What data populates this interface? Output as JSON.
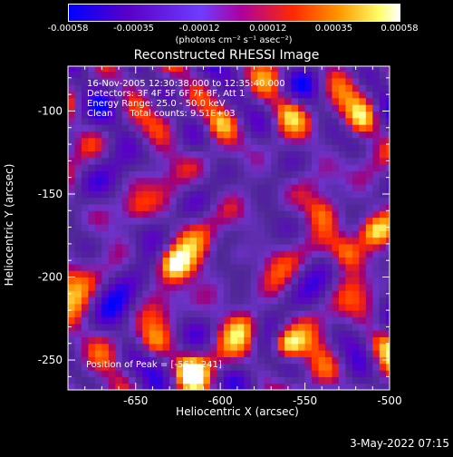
{
  "chart_data": {
    "type": "heatmap",
    "title": "Reconstructed RHESSI Image",
    "xlabel": "Heliocentric X (arcsec)",
    "ylabel": "Heliocentric Y (arcsec)",
    "xlim": [
      -690,
      -500
    ],
    "ylim": [
      -268,
      -73
    ],
    "x_ticks": [
      -650,
      -600,
      -550,
      -500
    ],
    "y_ticks": [
      -100,
      -150,
      -200,
      -250
    ],
    "colorbar": {
      "min": -0.00058,
      "max": 0.00058,
      "tick_labels": [
        "-0.00058",
        "-0.00035",
        "-0.00012",
        "0.00012",
        "0.00035",
        "0.00058"
      ],
      "tick_values": [
        -0.00058,
        -0.00035,
        -0.00012,
        0.00012,
        0.00035,
        0.00058
      ],
      "unit_label": "(photons cm⁻² s⁻¹ asec⁻²)"
    },
    "info_lines": [
      "16-Nov-2005 12:30:38.000 to 12:35:40.000",
      "Detectors: 3F 4F 5F 6F 7F 8F, Att 1",
      "Energy Range: 25.0 - 50.0 keV",
      "Clean      Total counts: 9.51E+03"
    ],
    "peak_label": "Position of Peak = [-561,-241]",
    "hot_spots": [
      {
        "x": -561,
        "y": -241,
        "value": 0.00058
      },
      {
        "x": -627,
        "y": -192,
        "value": 0.00048
      },
      {
        "x": -510,
        "y": -172,
        "value": 0.0004
      },
      {
        "x": -526,
        "y": -185,
        "value": 0.0003
      },
      {
        "x": -600,
        "y": -107,
        "value": 0.00028
      },
      {
        "x": -640,
        "y": -240,
        "value": 0.00028
      },
      {
        "x": -618,
        "y": -255,
        "value": 0.0003
      },
      {
        "x": -590,
        "y": -185,
        "value": 0.00025
      },
      {
        "x": -560,
        "y": -100,
        "value": 0.00025
      },
      {
        "x": -515,
        "y": -105,
        "value": 0.0003
      },
      {
        "x": -650,
        "y": -160,
        "value": 0.0002
      },
      {
        "x": -540,
        "y": -160,
        "value": 0.0002
      },
      {
        "x": -505,
        "y": -240,
        "value": 0.00022
      },
      {
        "x": -585,
        "y": -230,
        "value": 0.0002
      }
    ]
  },
  "datestamp": "3-May-2022 07:15"
}
